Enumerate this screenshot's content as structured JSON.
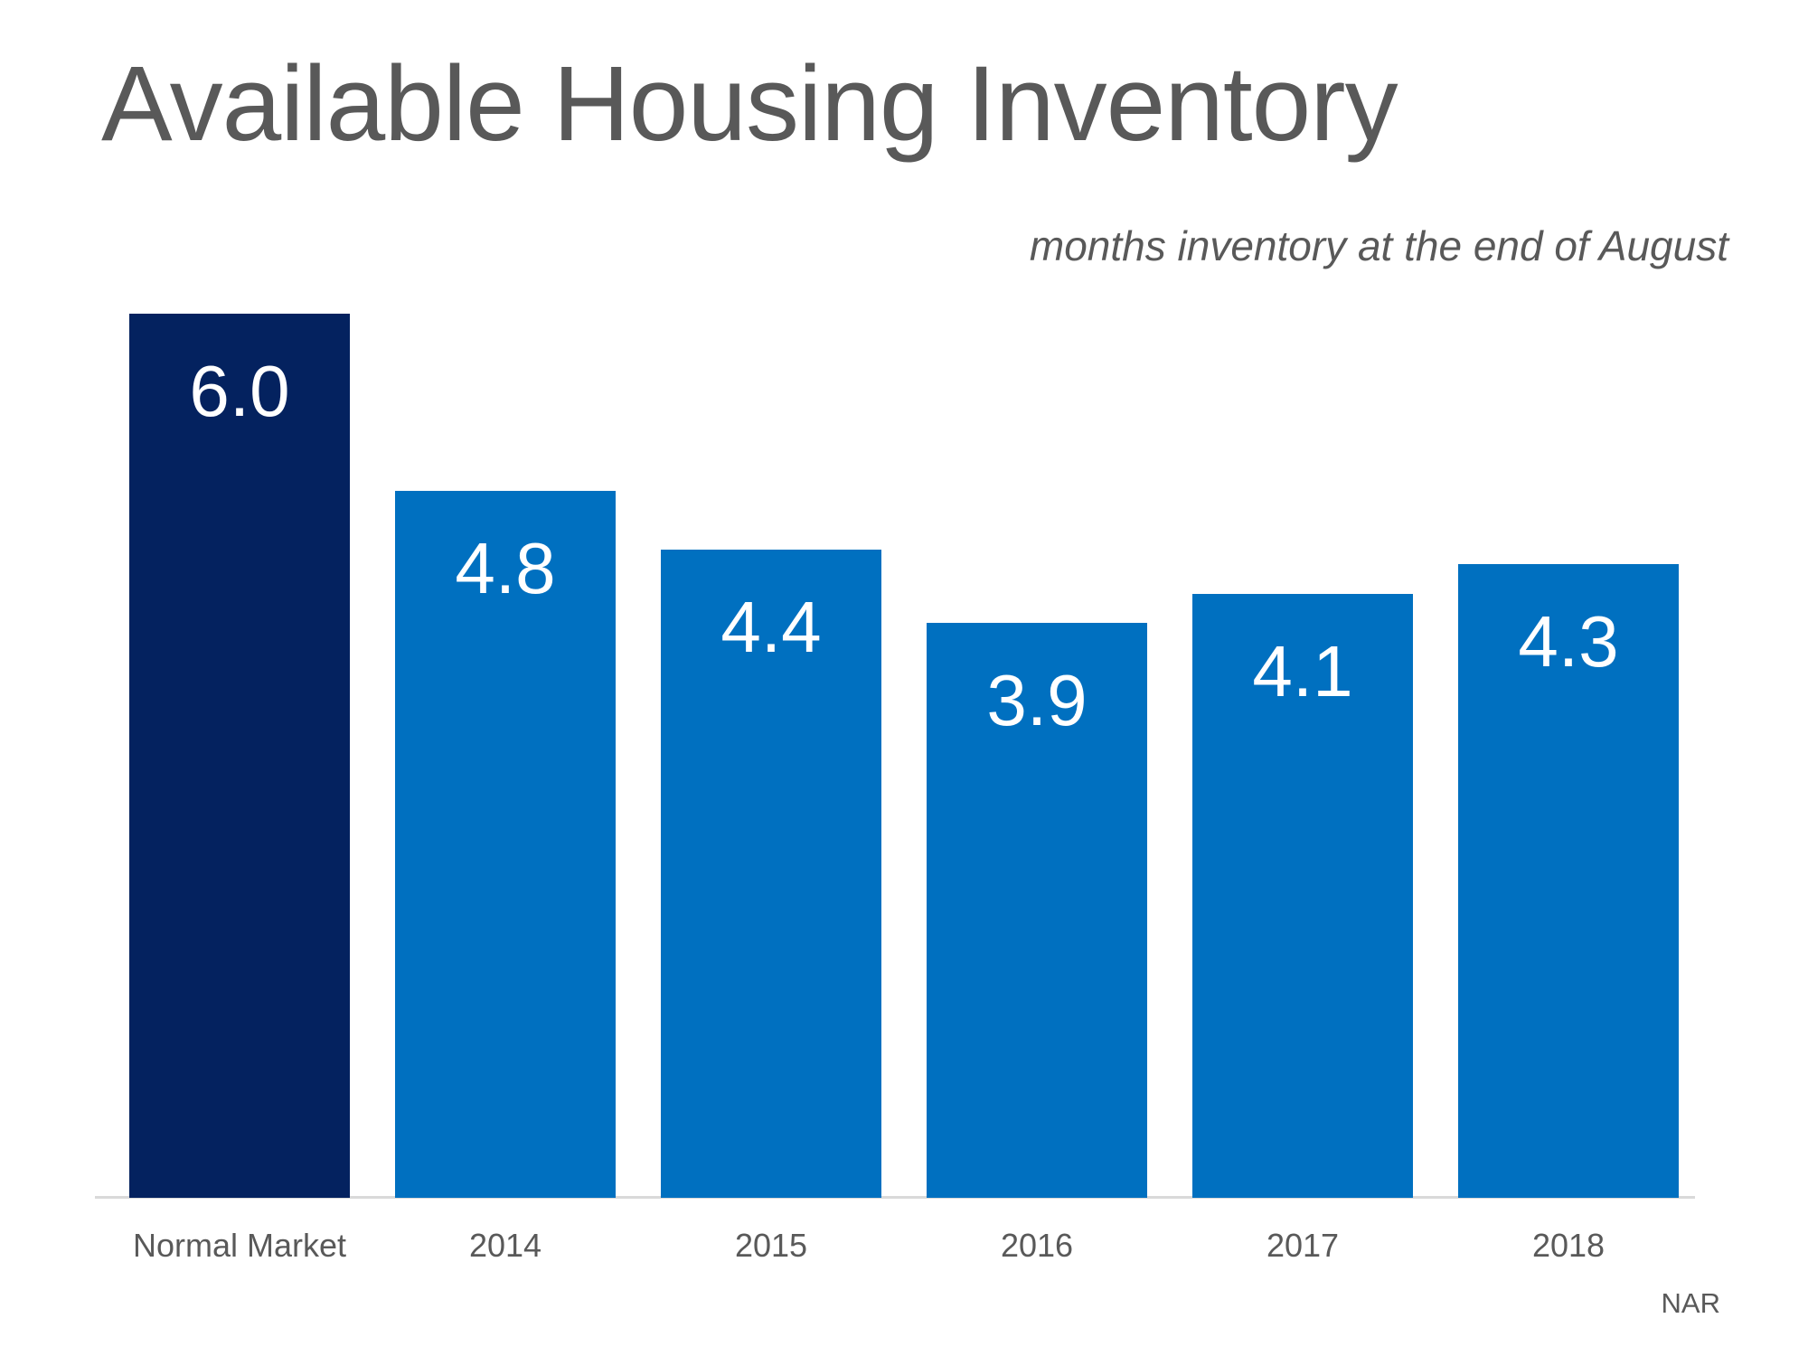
{
  "slide": {
    "background": "#FFFFFF",
    "source_label": "NAR"
  },
  "chart_data": {
    "type": "bar",
    "title": "Available Housing Inventory",
    "subtitle": "months inventory at the end of August",
    "categories": [
      "Normal Market",
      "2014",
      "2015",
      "2016",
      "2017",
      "2018"
    ],
    "values": [
      6.0,
      4.8,
      4.4,
      3.9,
      4.1,
      4.3
    ],
    "value_labels": [
      "6.0",
      "4.8",
      "4.4",
      "3.9",
      "4.1",
      "4.3"
    ],
    "xlabel": "",
    "ylabel": "",
    "ylim": [
      0,
      6
    ],
    "grid": false,
    "legend": "none",
    "source": "NAR",
    "colors": {
      "normal_market_bar": "#04225F",
      "year_bar": "#0070C0",
      "value_label": "#FFFFFF",
      "title": "#595959",
      "subtitle": "#595959",
      "axis_labels": "#595959",
      "axis_line": "#D9D9D9"
    }
  }
}
